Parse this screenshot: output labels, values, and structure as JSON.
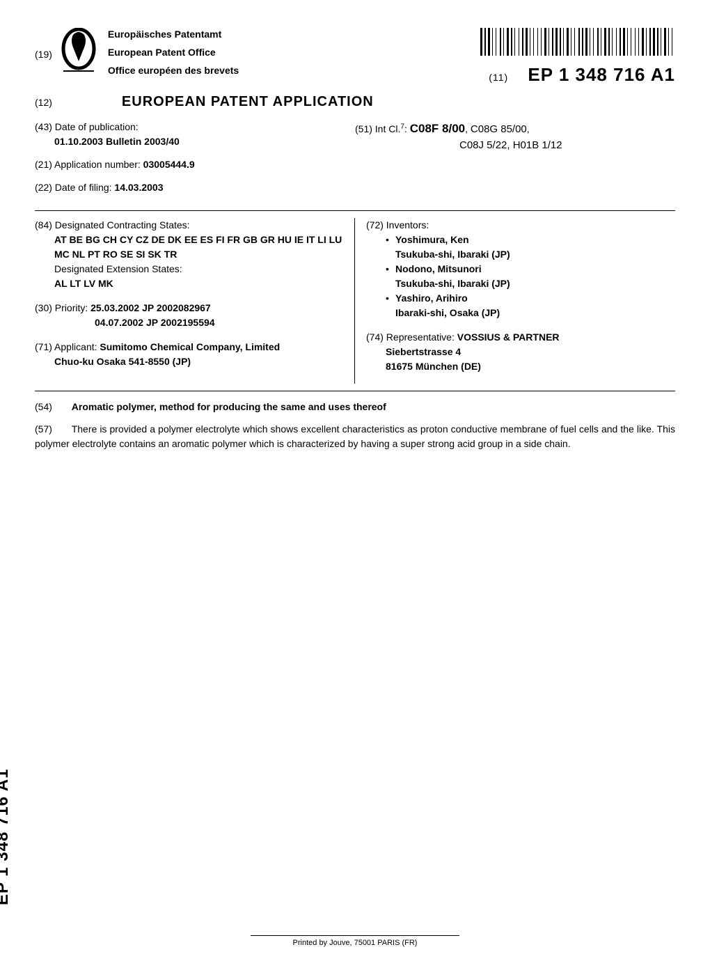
{
  "header": {
    "code19": "(19)",
    "office_de": "Europäisches Patentamt",
    "office_en": "European Patent Office",
    "office_fr": "Office européen des brevets",
    "pub_code": "(11)",
    "pub_number": "EP 1 348 716 A1"
  },
  "doc_type": {
    "code12": "(12)",
    "text": "EUROPEAN PATENT APPLICATION"
  },
  "bib_top": {
    "f43_code": "(43)",
    "f43_label": "Date of publication:",
    "f43_value": "01.10.2003  Bulletin 2003/40",
    "f21_code": "(21)",
    "f21_label": "Application number:",
    "f21_value": "03005444.9",
    "f22_code": "(22)",
    "f22_label": "Date of filing:",
    "f22_value": "14.03.2003",
    "f51_code": "(51)",
    "f51_label": "Int Cl.",
    "f51_sup": "7",
    "f51_main": "C08F 8/00",
    "f51_sub1": "C08G 85/00",
    "f51_sub2": "C08J 5/22, H01B 1/12"
  },
  "bib_box": {
    "f84_code": "(84)",
    "f84_label": "Designated Contracting States:",
    "f84_states": "AT BE BG CH CY CZ DE DK EE ES FI FR GB GR HU IE IT LI LU MC NL PT RO SE SI SK TR",
    "f84_ext_label": "Designated Extension States:",
    "f84_ext_states": "AL LT LV MK",
    "f30_code": "(30)",
    "f30_label": "Priority:",
    "f30_line1": "25.03.2002  JP 2002082967",
    "f30_line2": "04.07.2002  JP 2002195594",
    "f71_code": "(71)",
    "f71_label": "Applicant:",
    "f71_name": "Sumitomo Chemical Company, Limited",
    "f71_addr": "Chuo-ku Osaka 541-8550 (JP)",
    "f72_code": "(72)",
    "f72_label": "Inventors:",
    "inventors": [
      {
        "name": "Yoshimura, Ken",
        "addr": "Tsukuba-shi, Ibaraki (JP)"
      },
      {
        "name": "Nodono, Mitsunori",
        "addr": "Tsukuba-shi, Ibaraki (JP)"
      },
      {
        "name": "Yashiro, Arihiro",
        "addr": "Ibaraki-shi, Osaka (JP)"
      }
    ],
    "f74_code": "(74)",
    "f74_label": "Representative:",
    "f74_name": "VOSSIUS & PARTNER",
    "f74_addr1": "Siebertstrasse 4",
    "f74_addr2": "81675 München (DE)"
  },
  "title": {
    "code54": "(54)",
    "text": "Aromatic polymer, method for producing the same and uses thereof"
  },
  "abstract": {
    "code57": "(57)",
    "text": "There is provided a polymer electrolyte which shows excellent characteristics as proton conductive membrane of fuel cells and the like. This polymer electrolyte contains an aromatic polymer which is characterized by having a super strong acid group in a side chain."
  },
  "side_label": "EP 1 348 716 A1",
  "footer": "Printed by Jouve, 75001 PARIS (FR)",
  "colors": {
    "text": "#000000",
    "background": "#ffffff",
    "border": "#000000"
  },
  "fonts": {
    "body_family": "Arial, Helvetica, sans-serif",
    "body_size_pt": 10,
    "pub_number_size_pt": 19,
    "doc_type_size_pt": 15,
    "side_label_size_pt": 18
  },
  "barcode_widths": [
    3,
    1,
    2,
    1,
    3,
    1,
    1,
    2,
    1,
    3,
    2,
    1,
    1,
    2,
    3,
    1,
    2,
    1,
    1,
    3,
    1,
    2,
    2,
    1,
    3,
    1,
    1,
    2,
    1,
    3,
    1,
    2,
    1,
    2,
    3,
    1,
    1,
    2,
    2,
    1,
    3,
    1,
    2,
    1,
    1,
    2,
    3,
    1,
    1,
    2,
    1,
    3,
    2,
    1,
    2,
    1,
    3,
    1,
    1,
    2,
    1,
    3,
    2,
    1,
    1,
    2,
    3,
    1,
    2,
    1,
    1,
    3,
    1,
    2,
    2,
    1,
    3,
    1,
    1,
    2,
    1,
    3,
    1,
    2,
    1,
    2,
    3,
    1,
    1,
    2,
    2,
    1,
    3,
    1,
    2,
    1,
    1,
    2,
    3,
    1,
    1,
    2,
    1,
    3
  ]
}
